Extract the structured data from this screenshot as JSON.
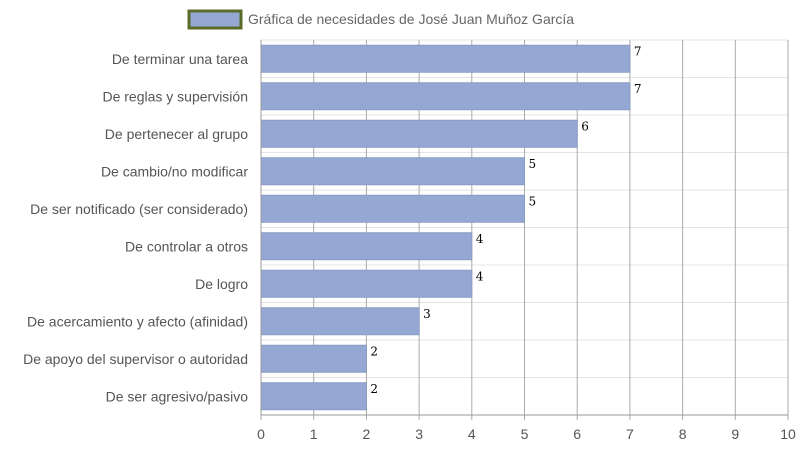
{
  "chart_data": {
    "type": "bar",
    "orientation": "horizontal",
    "legend": {
      "position": "top-center",
      "entries": [
        "Gráfica de necesidades de José Juan Muñoz García"
      ]
    },
    "series": [
      {
        "name": "Gráfica de necesidades de José Juan Muñoz García",
        "color": "#95a8d4",
        "border_color": "#8a9bc4"
      }
    ],
    "categories": [
      "De terminar una tarea",
      "De reglas y supervisión",
      "De pertenecer al grupo",
      "De cambio/no modificar",
      "De ser notificado (ser considerado)",
      "De controlar a otros",
      "De logro",
      "De acercamiento y afecto (afinidad)",
      "De apoyo del supervisor o autoridad",
      "De ser agresivo/pasivo"
    ],
    "values": [
      7,
      7,
      6,
      5,
      5,
      4,
      4,
      3,
      2,
      2
    ],
    "xlim": [
      0,
      10
    ],
    "xticks": [
      "0",
      "1",
      "2",
      "3",
      "4",
      "5",
      "6",
      "7",
      "8",
      "9",
      "10"
    ],
    "grid": true,
    "legend_swatch_border": "#5a6b2a",
    "grid_color": "#e4e4e4",
    "axis_color": "#999999"
  }
}
